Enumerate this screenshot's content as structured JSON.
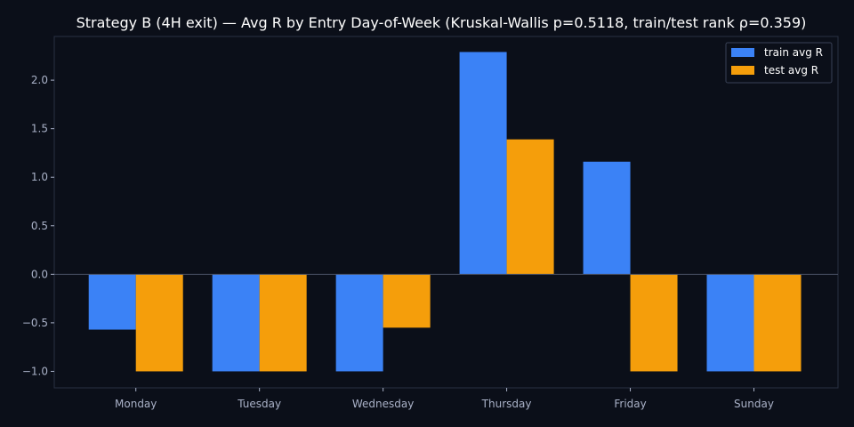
{
  "chart_data": {
    "type": "bar",
    "title": "Strategy B (4H exit) — Avg R by Entry Day-of-Week (Kruskal-Wallis p=0.5118, train/test rank ρ=0.359)",
    "xlabel": "",
    "ylabel": "",
    "categories": [
      "Monday",
      "Tuesday",
      "Wednesday",
      "Thursday",
      "Friday",
      "Sunday"
    ],
    "series": [
      {
        "name": "train avg R",
        "color": "#3b82f6",
        "values": [
          -0.57,
          -1.0,
          -1.0,
          2.29,
          1.16,
          -1.0
        ]
      },
      {
        "name": "test avg R",
        "color": "#f59e0b",
        "values": [
          -1.0,
          -1.0,
          -0.55,
          1.39,
          -1.0,
          -1.0
        ]
      }
    ],
    "ylim": [
      -1.17,
      2.45
    ],
    "yticks": [
      2.0,
      1.5,
      1.0,
      0.5,
      0.0,
      -0.5,
      -1.0
    ],
    "ytick_labels": [
      "2.0",
      "1.5",
      "1.0",
      "0.5",
      "0.0",
      "−0.5",
      "−1.0"
    ],
    "grid": false,
    "zero_line": true,
    "legend_position": "top-right",
    "colors": {
      "background": "#0b0f19",
      "axes_edge": "#2a3142",
      "text": "#ffffff",
      "tick_text": "#a9b1c7",
      "legend_bg": "#0b0f19",
      "legend_edge": "#3a4256"
    }
  }
}
